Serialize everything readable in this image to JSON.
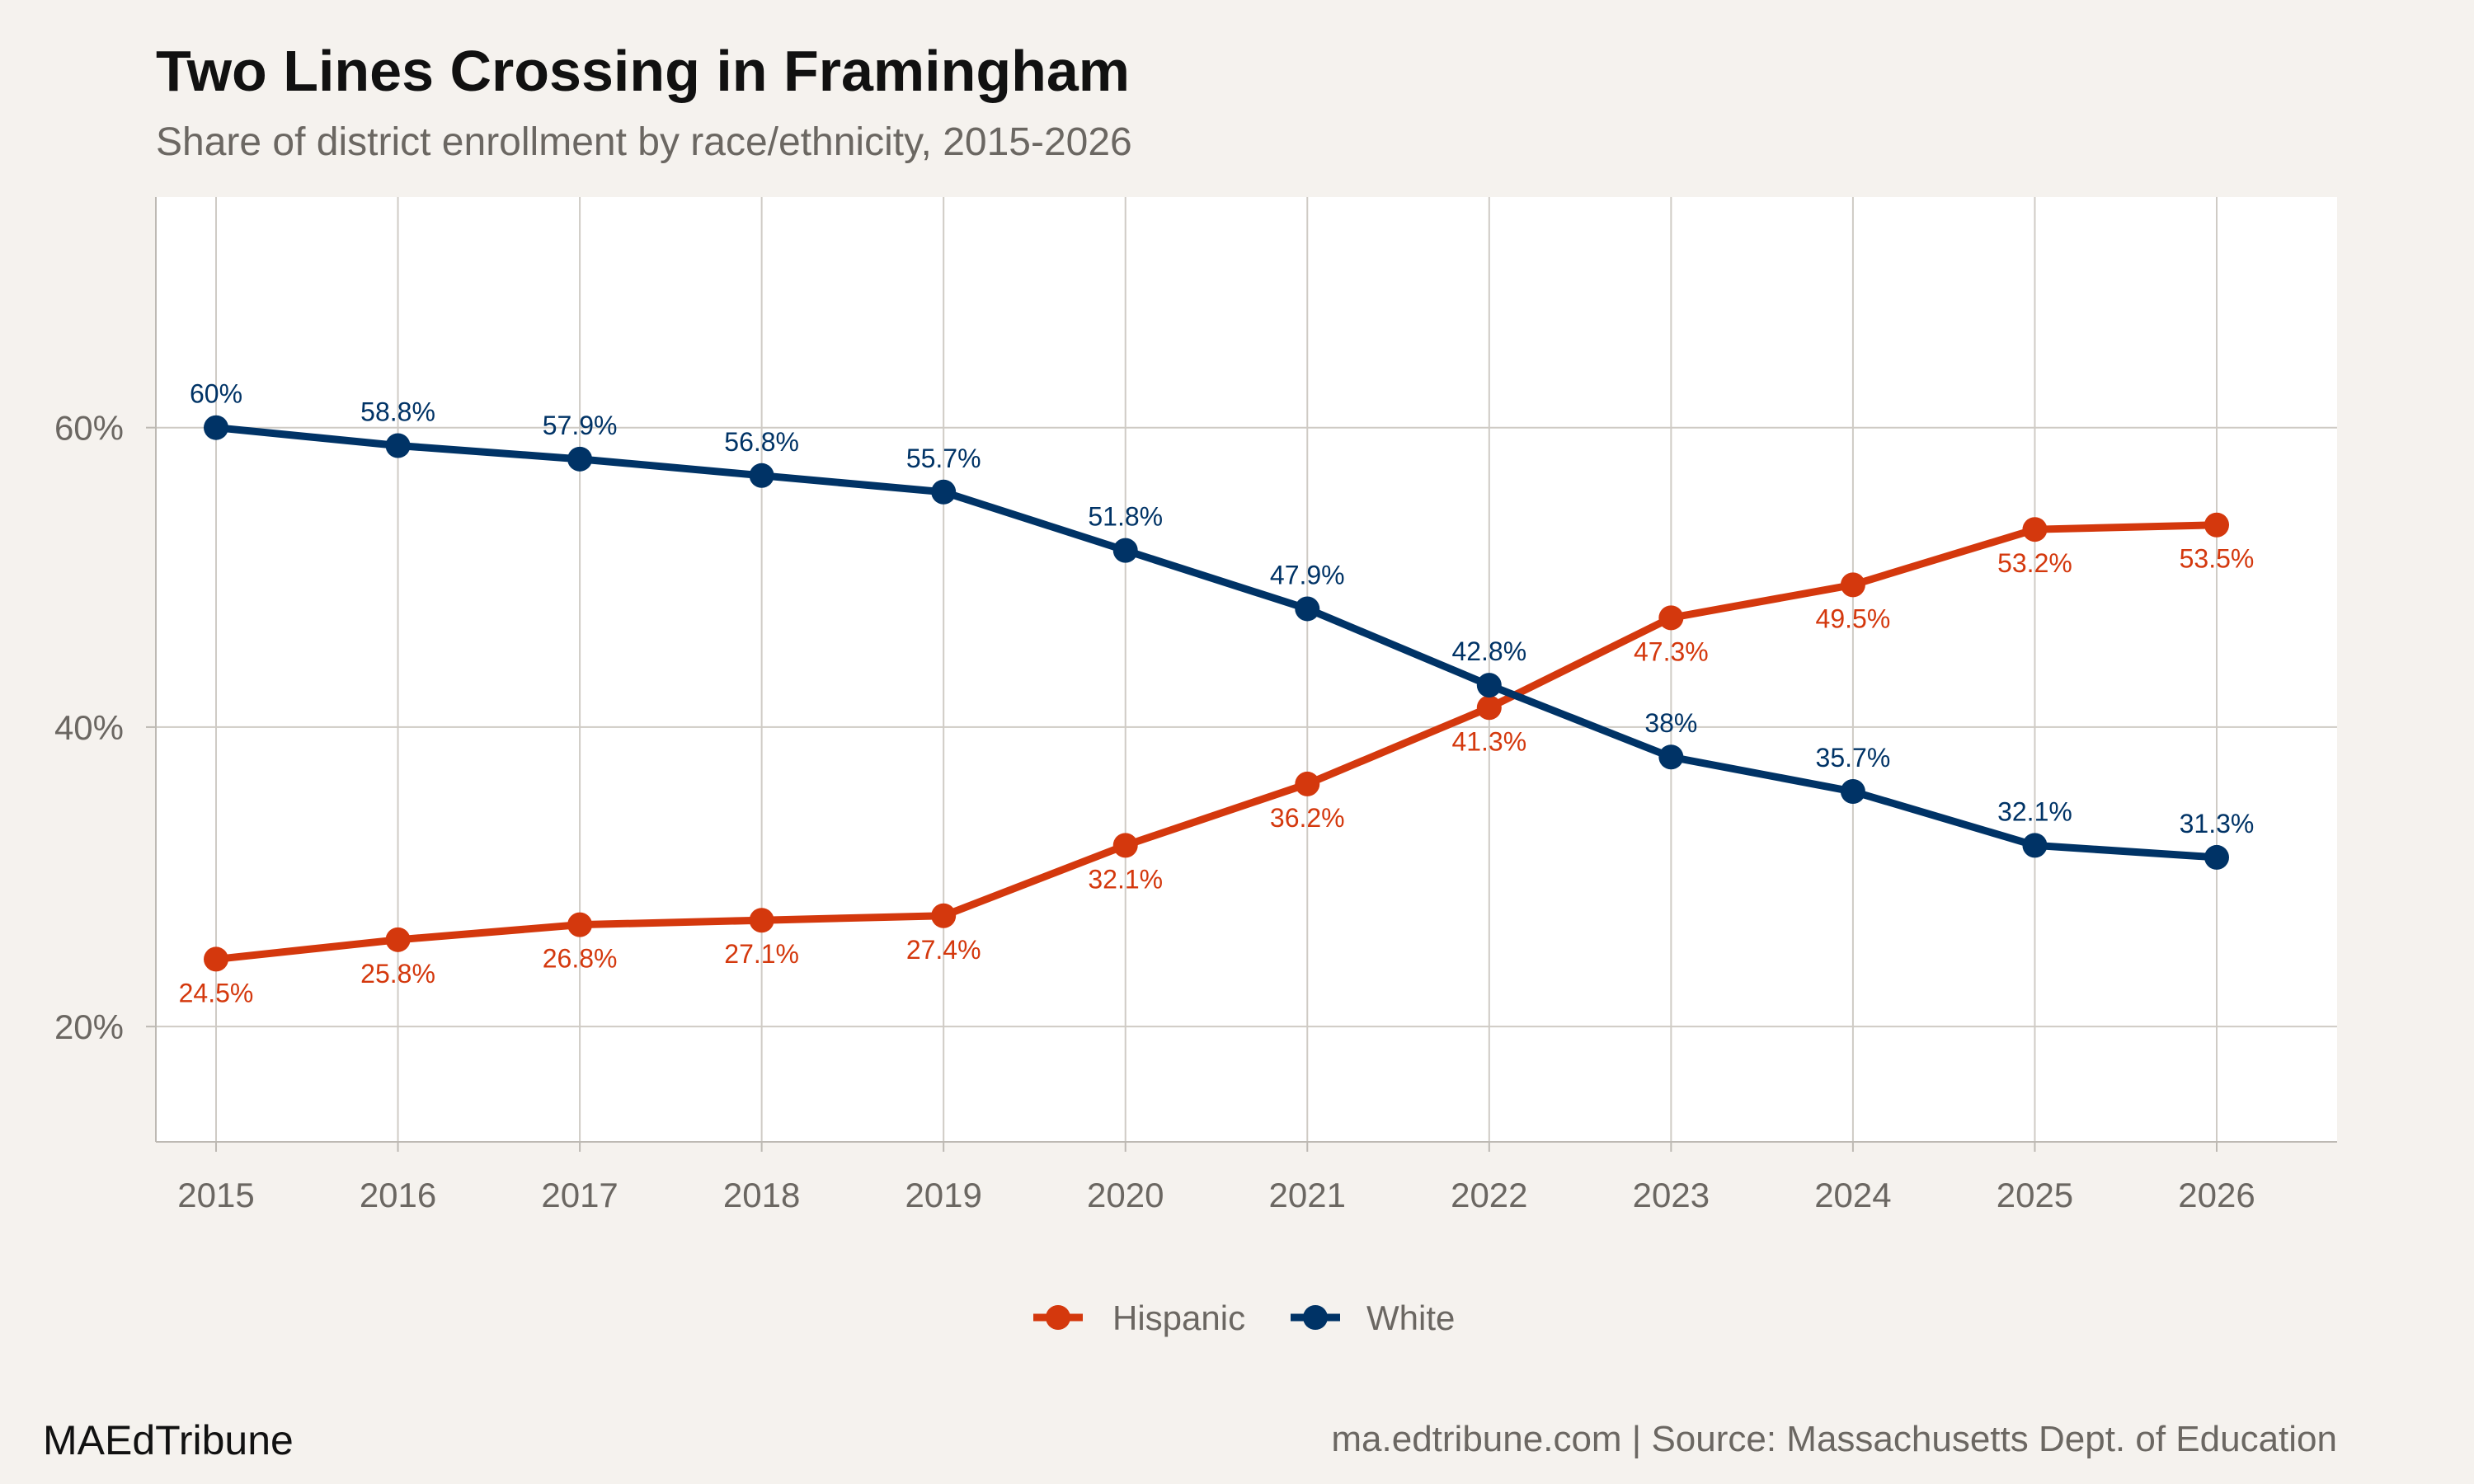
{
  "chart_data": {
    "type": "line",
    "title": "Two Lines Crossing in Framingham",
    "subtitle": "Share of district enrollment by race/ethnicity, 2015-2026",
    "xlabel": "",
    "ylabel": "",
    "x": [
      2015,
      2016,
      2017,
      2018,
      2019,
      2020,
      2021,
      2022,
      2023,
      2024,
      2025,
      2026
    ],
    "x_tick_labels": [
      "2015",
      "2016",
      "2017",
      "2018",
      "2019",
      "2020",
      "2021",
      "2022",
      "2023",
      "2024",
      "2025",
      "2026"
    ],
    "y_ticks": [
      20,
      40,
      60
    ],
    "y_tick_labels": [
      "20%",
      "40%",
      "60%"
    ],
    "ylim": [
      12.3,
      75.4
    ],
    "grid": true,
    "legend_position": "bottom",
    "series": [
      {
        "name": "Hispanic",
        "color": "#D4380D",
        "values": [
          24.5,
          25.8,
          26.8,
          27.1,
          27.4,
          32.1,
          36.2,
          41.3,
          47.3,
          49.5,
          53.2,
          53.5
        ],
        "labels": [
          "24.5%",
          "25.8%",
          "26.8%",
          "27.1%",
          "27.4%",
          "32.1%",
          "36.2%",
          "41.3%",
          "47.3%",
          "49.5%",
          "53.2%",
          "53.5%"
        ],
        "label_position": "below"
      },
      {
        "name": "White",
        "color": "#003366",
        "values": [
          60,
          58.8,
          57.9,
          56.8,
          55.7,
          51.8,
          47.9,
          42.8,
          38,
          35.7,
          32.1,
          31.3
        ],
        "labels": [
          "60%",
          "58.8%",
          "57.9%",
          "56.8%",
          "55.7%",
          "51.8%",
          "47.9%",
          "42.8%",
          "38%",
          "35.7%",
          "32.1%",
          "31.3%"
        ],
        "label_position": "above"
      }
    ]
  },
  "footer": {
    "brand": "MAEdTribune",
    "source": "ma.edtribune.com | Source: Massachusetts Dept. of Education"
  },
  "colors": {
    "background": "#F5F2EE",
    "panel": "#FFFFFF",
    "grid": "#CFCBC5",
    "text_muted": "#6B6762"
  }
}
